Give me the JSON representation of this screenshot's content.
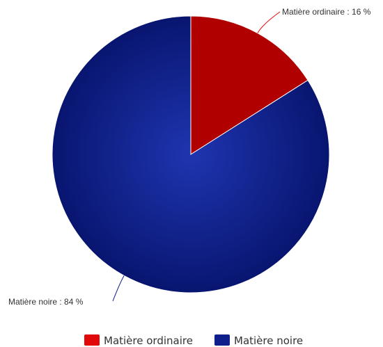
{
  "chart_data": {
    "type": "pie",
    "title": "",
    "slices": [
      {
        "label": "Matière ordinaire",
        "value": 16,
        "color": "#e00808",
        "data_label": "Matière ordinaire : 16 %"
      },
      {
        "label": "Matière noire",
        "value": 84,
        "color": "#0e1f8c",
        "data_label": "Matière noire : 84 %"
      }
    ],
    "legend": {
      "placement": "bottom-center",
      "entries": [
        "Matière ordinaire",
        "Matière noire"
      ]
    },
    "start_angle": "12 o'clock",
    "direction": "clockwise"
  }
}
